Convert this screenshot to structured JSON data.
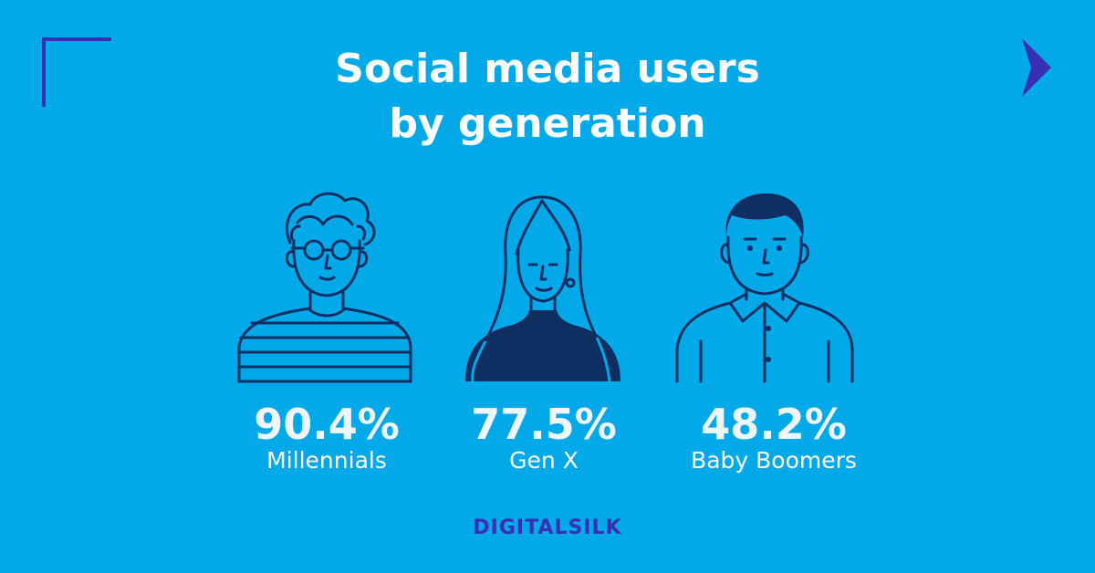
{
  "colors": {
    "background": "#02a9e9",
    "accent": "#3730b4",
    "line": "#0f2f62",
    "text": "#ffffff"
  },
  "title": {
    "line1": "Social media users",
    "line2": "by generation"
  },
  "stats": [
    {
      "percent": "90.4%",
      "label": "Millennials",
      "value": 90.4,
      "icon": "millennial-person-icon"
    },
    {
      "percent": "77.5%",
      "label": "Gen X",
      "value": 77.5,
      "icon": "gen-x-person-icon"
    },
    {
      "percent": "48.2%",
      "label": "Baby Boomers",
      "value": 48.2,
      "icon": "baby-boomer-person-icon"
    }
  ],
  "decorations": {
    "corner": "corner-bracket-icon",
    "next": "chevron-right-icon"
  },
  "brand": {
    "logo_text": "DIGITALSILK"
  }
}
